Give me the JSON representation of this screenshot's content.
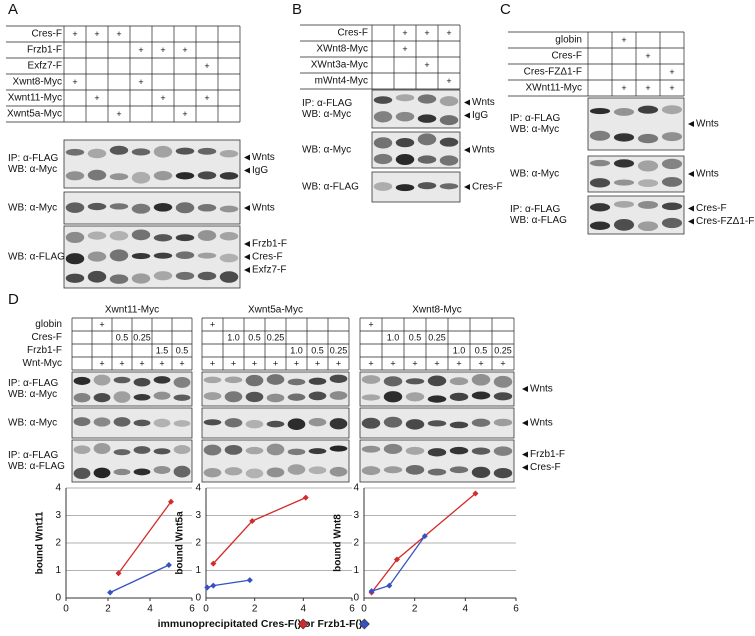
{
  "panels": [
    {
      "label": "A",
      "table": {
        "rows": [
          {
            "label": "Cres-F",
            "cells": [
              "+",
              "+",
              "+",
              null,
              null,
              null,
              null,
              null
            ]
          },
          {
            "label": "Frzb1-F",
            "cells": [
              null,
              null,
              null,
              "+",
              "+",
              "+",
              null,
              null
            ]
          },
          {
            "label": "Exfz7-F",
            "cells": [
              null,
              null,
              null,
              null,
              null,
              null,
              "+",
              null
            ]
          },
          {
            "label": "Xwnt8-Myc",
            "cells": [
              "+",
              null,
              null,
              "+",
              null,
              null,
              null,
              null
            ]
          },
          {
            "label": "Xwnt11-Myc",
            "cells": [
              null,
              "+",
              null,
              null,
              "+",
              null,
              "+",
              null
            ]
          },
          {
            "label": "Xwnt5a-Myc",
            "cells": [
              null,
              null,
              "+",
              null,
              null,
              "+",
              null,
              null
            ]
          }
        ]
      },
      "blots": [
        {
          "left": [
            "IP: α-FLAG",
            "WB: α-Myc"
          ],
          "right": [
            "Wnts",
            "IgG"
          ]
        },
        {
          "left": [
            "WB: α-Myc"
          ],
          "right": [
            "Wnts"
          ]
        },
        {
          "left": [
            "WB: α-FLAG"
          ],
          "right": [
            "Frzb1-F",
            "Cres-F",
            "Exfz7-F"
          ]
        }
      ]
    },
    {
      "label": "B",
      "table": {
        "rows": [
          {
            "label": "Cres-F",
            "cells": [
              null,
              "+",
              "+",
              "+"
            ]
          },
          {
            "label": "XWnt8-Myc",
            "cells": [
              null,
              "+",
              null,
              null
            ]
          },
          {
            "label": "XWnt3a-Myc",
            "cells": [
              null,
              null,
              "+",
              null
            ]
          },
          {
            "label": "mWnt4-Myc",
            "cells": [
              null,
              null,
              null,
              "+"
            ]
          }
        ]
      },
      "blots": [
        {
          "left": [
            "IP: α-FLAG",
            "WB: α-Myc"
          ],
          "right": [
            "Wnts",
            "IgG"
          ]
        },
        {
          "left": [
            "WB: α-Myc"
          ],
          "right": [
            "Wnts"
          ]
        },
        {
          "left": [
            "WB: α-FLAG"
          ],
          "right": [
            "Cres-F"
          ]
        }
      ]
    },
    {
      "label": "C",
      "table": {
        "rows": [
          {
            "label": "globin",
            "cells": [
              null,
              "+",
              null,
              null
            ]
          },
          {
            "label": "Cres-F",
            "cells": [
              null,
              null,
              "+",
              null
            ]
          },
          {
            "label": "Cres-FZΔ1-F",
            "cells": [
              null,
              null,
              null,
              "+"
            ]
          },
          {
            "label": "XWnt11-Myc",
            "cells": [
              null,
              "+",
              "+",
              "+"
            ]
          }
        ]
      },
      "blots": [
        {
          "left": [
            "IP: α-FLAG",
            "WB: α-Myc"
          ],
          "right": [
            "Wnts"
          ]
        },
        {
          "left": [
            "WB: α-Myc"
          ],
          "right": [
            "Wnts"
          ]
        },
        {
          "left": [
            "IP: α-FLAG",
            "WB: α-FLAG"
          ],
          "right": [
            "Cres-F",
            "Cres-FZΔ1-F"
          ]
        }
      ]
    }
  ],
  "panel_d": {
    "label": "D",
    "row_labels": [
      "globin",
      "Cres-F",
      "Frzb1-F",
      "Wnt-Myc"
    ],
    "groups": [
      {
        "title": "Xwnt11-Myc",
        "cells": [
          [
            null,
            "+",
            null,
            null,
            null,
            null
          ],
          [
            null,
            null,
            "0.5",
            "0.25",
            null,
            null
          ],
          [
            null,
            null,
            null,
            null,
            "1.5",
            "0.5"
          ],
          [
            null,
            "+",
            "+",
            "+",
            "+",
            "+"
          ]
        ]
      },
      {
        "title": "Xwnt5a-Myc",
        "cells": [
          [
            "+",
            null,
            null,
            null,
            null,
            null,
            null
          ],
          [
            null,
            "1.0",
            "0.5",
            "0.25",
            null,
            null,
            null
          ],
          [
            null,
            null,
            null,
            null,
            "1.0",
            "0.5",
            "0.25"
          ],
          [
            "+",
            "+",
            "+",
            "+",
            "+",
            "+",
            "+"
          ]
        ]
      },
      {
        "title": "Xwnt8-Myc",
        "cells": [
          [
            "+",
            null,
            null,
            null,
            null,
            null,
            null
          ],
          [
            null,
            "1.0",
            "0.5",
            "0.25",
            null,
            null,
            null
          ],
          [
            null,
            null,
            null,
            null,
            "1.0",
            "0.5",
            "0.25"
          ],
          [
            "+",
            "+",
            "+",
            "+",
            "+",
            "+",
            "+"
          ]
        ]
      }
    ],
    "blots": [
      {
        "left": [
          "IP: α-FLAG",
          "WB: α-Myc"
        ],
        "right": [
          "Wnts"
        ]
      },
      {
        "left": [
          "WB: α-Myc"
        ],
        "right": [
          "Wnts"
        ]
      },
      {
        "left": [
          "IP: α-FLAG",
          "WB: α-FLAG"
        ],
        "right": [
          "Frzb1-F",
          "Cres-F"
        ]
      }
    ],
    "x_label_parts": [
      "immunoprecipitated Cres-F(",
      ") or Frzb1-F(",
      ")"
    ]
  },
  "chart_data": [
    {
      "type": "line",
      "y_label": "bound Wnt11",
      "xlim": [
        0,
        6
      ],
      "xticks": [
        0,
        2,
        4,
        6
      ],
      "ylim": [
        0,
        4
      ],
      "yticks": [
        0,
        1,
        2,
        3,
        4
      ],
      "grid": true,
      "series": [
        {
          "color": "#d42a2a",
          "x": [
            2.5,
            5.0
          ],
          "values": [
            0.9,
            3.5
          ]
        },
        {
          "color": "#3552c4",
          "x": [
            2.1,
            4.9
          ],
          "values": [
            0.2,
            1.2
          ]
        }
      ]
    },
    {
      "type": "line",
      "y_label": "bound Wnt5a",
      "xlim": [
        0,
        6
      ],
      "xticks": [
        0,
        2,
        4,
        6
      ],
      "ylim": [
        0,
        4
      ],
      "yticks": [
        0,
        1,
        2,
        3,
        4
      ],
      "grid": true,
      "series": [
        {
          "color": "#d42a2a",
          "x": [
            0.3,
            1.9,
            4.1
          ],
          "values": [
            1.25,
            2.8,
            3.65
          ]
        },
        {
          "color": "#3552c4",
          "x": [
            0.05,
            0.3,
            1.8
          ],
          "values": [
            0.38,
            0.45,
            0.65
          ]
        }
      ]
    },
    {
      "type": "line",
      "y_label": "bound Wnt8",
      "xlim": [
        0,
        6
      ],
      "xticks": [
        0,
        2,
        4,
        6
      ],
      "ylim": [
        0,
        4
      ],
      "yticks": [
        0,
        1,
        2,
        3,
        4
      ],
      "grid": true,
      "series": [
        {
          "color": "#d42a2a",
          "x": [
            0.3,
            1.3,
            4.4
          ],
          "values": [
            0.2,
            1.4,
            3.8
          ]
        },
        {
          "color": "#3552c4",
          "x": [
            0.3,
            1.0,
            2.4
          ],
          "values": [
            0.25,
            0.45,
            2.25
          ]
        }
      ]
    }
  ]
}
